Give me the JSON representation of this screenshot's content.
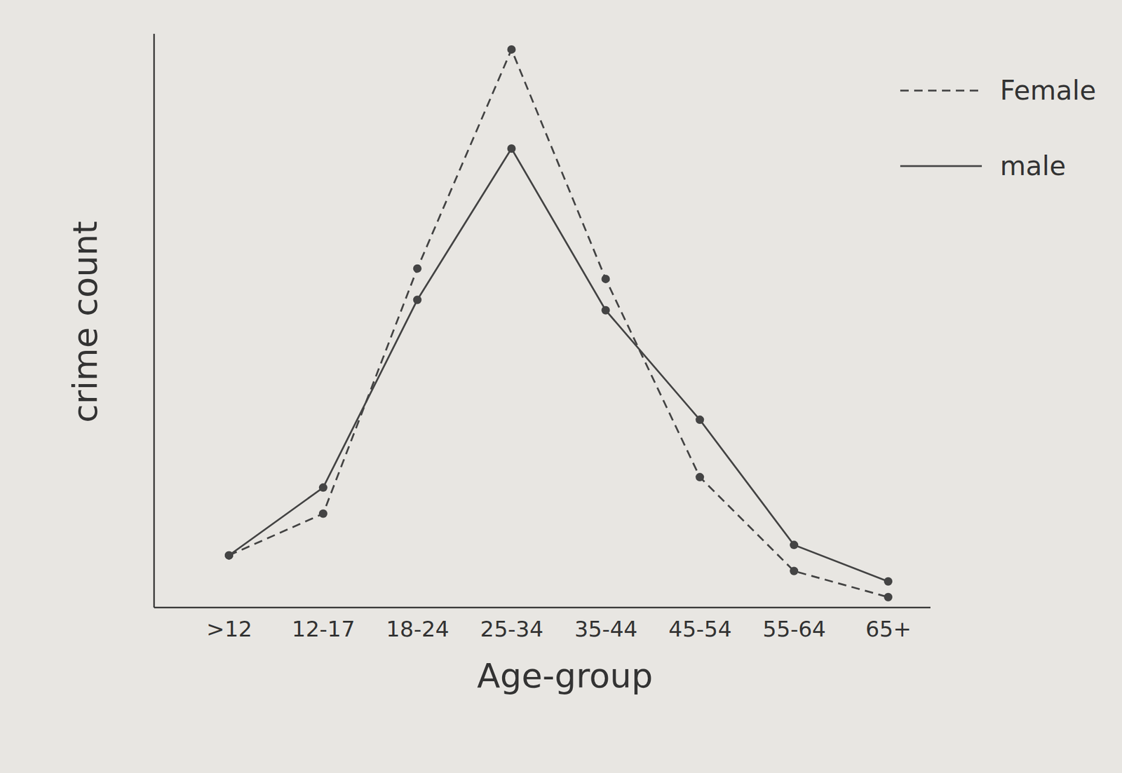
{
  "chart_data": {
    "type": "line",
    "x_label": "Age-group",
    "y_label": "crime count",
    "categories": [
      ">12",
      "12-17",
      "18-24",
      "25-34",
      "35-44",
      "45-54",
      "55-64",
      "65+"
    ],
    "series": [
      {
        "name": "Female",
        "color": "#444444",
        "line_style": "dashed",
        "marker": "circle",
        "values": [
          10,
          18,
          65,
          107,
          63,
          25,
          7,
          2
        ]
      },
      {
        "name": "male",
        "color": "#444444",
        "line_style": "solid",
        "marker": "circle",
        "values": [
          10,
          23,
          59,
          88,
          57,
          36,
          12,
          5
        ]
      }
    ],
    "ylim": [
      0,
      110
    ],
    "tick_labels": "x",
    "legend": "upper right",
    "grid": false
  }
}
